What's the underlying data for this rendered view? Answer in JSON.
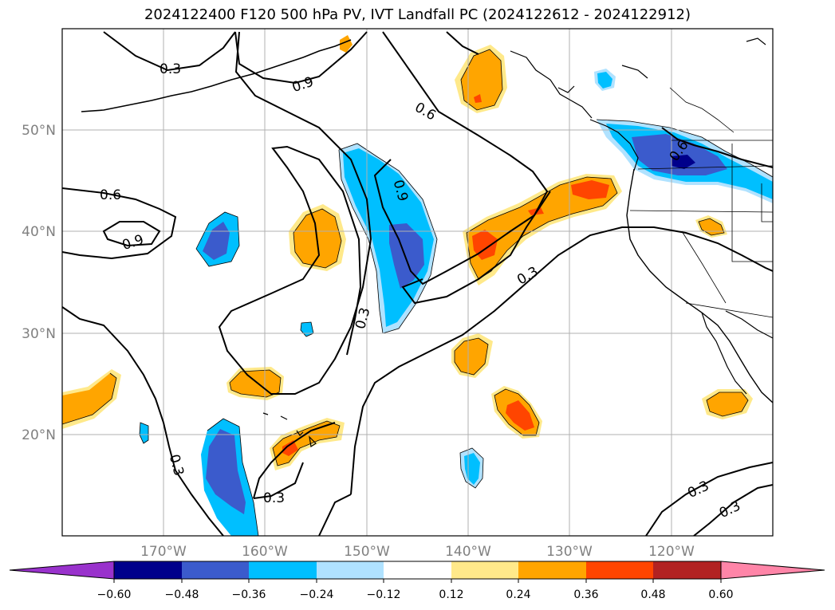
{
  "title": "2024122400 F120 500 hPa PV, IVT Landfall PC (2024122612 - 2024122912)",
  "lat_labels": [
    "50°N",
    "40°N",
    "30°N",
    "20°N"
  ],
  "lon_labels": [
    "170°W",
    "160°W",
    "150°W",
    "140°W",
    "130°W",
    "120°W"
  ],
  "contour_labels": [
    "0.3",
    "0.9",
    "0.6",
    "0.6",
    "0.9",
    "0.6",
    "0.9",
    "0.3",
    "0.3",
    "0.3",
    "0.3",
    "0.3",
    "0.3"
  ],
  "colorbar": {
    "ticks": [
      "−0.60",
      "−0.48",
      "−0.36",
      "−0.24",
      "−0.12",
      "0.12",
      "0.24",
      "0.36",
      "0.48",
      "0.60"
    ],
    "colors": [
      "#9932cc",
      "#00008b",
      "#3b5bcc",
      "#00bfff",
      "#b0e2ff",
      "#ffffff",
      "#ffe98a",
      "#ffa500",
      "#ff4500",
      "#b22222",
      "#ff85a8"
    ]
  }
}
